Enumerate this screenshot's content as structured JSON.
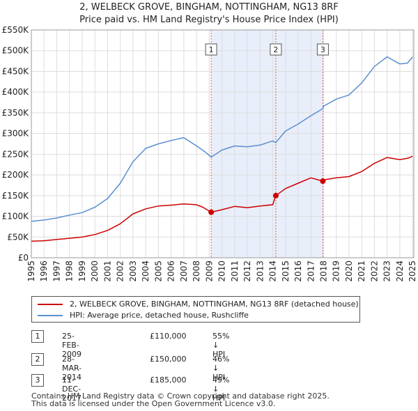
{
  "chart_data": {
    "type": "line",
    "title": "2, WELBECK GROVE, BINGHAM, NOTTINGHAM, NG13 8RF",
    "subtitle": "Price paid vs. HM Land Registry's House Price Index (HPI)",
    "xlabel": "",
    "ylabel": "",
    "xlim": [
      1995,
      2025.1
    ],
    "ylim": [
      0,
      550000
    ],
    "y_ticks": [
      0,
      50000,
      100000,
      150000,
      200000,
      250000,
      300000,
      350000,
      400000,
      450000,
      500000,
      550000
    ],
    "y_tick_labels": [
      "£0",
      "£50K",
      "£100K",
      "£150K",
      "£200K",
      "£250K",
      "£300K",
      "£350K",
      "£400K",
      "£450K",
      "£500K",
      "£550K"
    ],
    "x_ticks": [
      1995,
      1996,
      1997,
      1998,
      1999,
      2000,
      2001,
      2002,
      2003,
      2004,
      2005,
      2006,
      2007,
      2008,
      2009,
      2010,
      2011,
      2012,
      2013,
      2014,
      2015,
      2016,
      2017,
      2018,
      2019,
      2020,
      2021,
      2022,
      2023,
      2024,
      2025
    ],
    "x_tick_labels": [
      "1995",
      "1996",
      "1997",
      "1998",
      "1999",
      "2000",
      "2001",
      "2002",
      "2003",
      "2004",
      "2005",
      "2006",
      "2007",
      "2008",
      "2009",
      "2010",
      "2011",
      "2012",
      "2013",
      "2014",
      "2015",
      "2016",
      "2017",
      "2018",
      "2019",
      "2020",
      "2021",
      "2022",
      "2023",
      "2024",
      "2025"
    ],
    "grid": true,
    "legend_position": "below",
    "shaded_region": {
      "x_start": 2009.15,
      "x_end": 2017.94
    },
    "series": [
      {
        "name": "2, WELBECK GROVE, BINGHAM, NOTTINGHAM, NG13 8RF (detached house)",
        "color": "#cc0000",
        "x": [
          1995,
          1996,
          1997,
          1998,
          1999,
          2000,
          2001,
          2002,
          2003,
          2004,
          2005,
          2006,
          2007,
          2008,
          2008.5,
          2009.15,
          2010,
          2011,
          2012,
          2013,
          2014.0,
          2014.24,
          2015,
          2016,
          2017,
          2017.94,
          2018,
          2019,
          2020,
          2021,
          2022,
          2023,
          2024,
          2024.6,
          2025
        ],
        "y": [
          40000,
          41000,
          44000,
          47000,
          50000,
          56000,
          66000,
          82000,
          106000,
          118000,
          125000,
          127000,
          130000,
          128000,
          122000,
          110000,
          116000,
          124000,
          121000,
          125000,
          128000,
          150000,
          167000,
          180000,
          193000,
          185000,
          188000,
          193000,
          196000,
          208000,
          228000,
          242000,
          237000,
          240000,
          245000
        ]
      },
      {
        "name": "HPI: Average price, detached house, Rushcliffe",
        "color": "#5b8ed0",
        "x": [
          1995,
          1996,
          1997,
          1998,
          1999,
          2000,
          2001,
          2002,
          2003,
          2004,
          2005,
          2006,
          2007,
          2008,
          2008.7,
          2009.15,
          2010,
          2011,
          2012,
          2013,
          2014,
          2014.24,
          2015,
          2016,
          2017,
          2017.94,
          2018,
          2019,
          2020,
          2021,
          2022,
          2023,
          2024,
          2024.6,
          2025
        ],
        "y": [
          88000,
          91000,
          96000,
          103000,
          109000,
          122000,
          143000,
          180000,
          232000,
          264000,
          275000,
          283000,
          290000,
          270000,
          255000,
          243000,
          260000,
          270000,
          268000,
          272000,
          282000,
          278000,
          306000,
          323000,
          343000,
          360000,
          366000,
          383000,
          393000,
          422000,
          462000,
          485000,
          468000,
          470000,
          485000
        ]
      }
    ],
    "sales": [
      {
        "num": "1",
        "x": 2009.15,
        "price": 110000
      },
      {
        "num": "2",
        "x": 2014.24,
        "price": 150000
      },
      {
        "num": "3",
        "x": 2017.94,
        "price": 185000
      }
    ]
  },
  "legend": {
    "property_label": "2, WELBECK GROVE, BINGHAM, NOTTINGHAM, NG13 8RF (detached house)",
    "hpi_label": "HPI: Average price, detached house, Rushcliffe",
    "property_color": "#cc0000",
    "hpi_color": "#5b8ed0"
  },
  "sales_table": [
    {
      "num": "1",
      "date": "25-FEB-2009",
      "price": "£110,000",
      "hpi": "55% ↓ HPI"
    },
    {
      "num": "2",
      "date": "28-MAR-2014",
      "price": "£150,000",
      "hpi": "46% ↓ HPI"
    },
    {
      "num": "3",
      "date": "11-DEC-2017",
      "price": "£185,000",
      "hpi": "49% ↓ HPI"
    }
  ],
  "footer": {
    "line1": "Contains HM Land Registry data © Crown copyright and database right 2025.",
    "line2": "This data is licensed under the Open Government Licence v3.0."
  }
}
